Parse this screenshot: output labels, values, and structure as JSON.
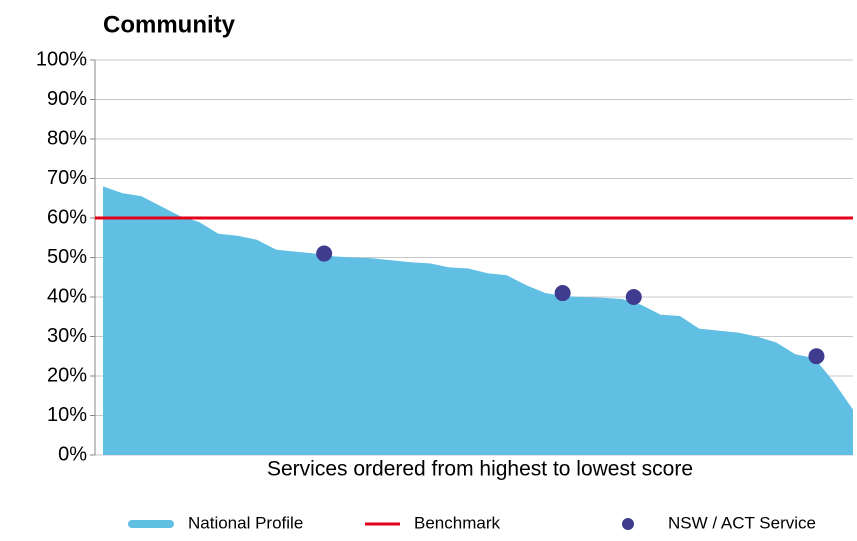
{
  "chart_data": {
    "type": "area",
    "title": "Community",
    "xlabel": "Services ordered from highest to lowest score",
    "ylim": [
      0,
      100
    ],
    "yticks": [
      {
        "value": 0,
        "label": "0%"
      },
      {
        "value": 10,
        "label": "10%"
      },
      {
        "value": 20,
        "label": "20%"
      },
      {
        "value": 30,
        "label": "30%"
      },
      {
        "value": 40,
        "label": "40%"
      },
      {
        "value": 50,
        "label": "50%"
      },
      {
        "value": 60,
        "label": "60%"
      },
      {
        "value": 70,
        "label": "70%"
      },
      {
        "value": 80,
        "label": "80%"
      },
      {
        "value": 90,
        "label": "90%"
      },
      {
        "value": 100,
        "label": "100%"
      }
    ],
    "grid": true,
    "series": [
      {
        "name": "National Profile",
        "color": "#62bfe4",
        "values": [
          68,
          66.3,
          65.5,
          63,
          60.5,
          59,
          56,
          55.5,
          54.5,
          52,
          51.5,
          51,
          50.3,
          50,
          49.8,
          49.3,
          48.8,
          48.5,
          47.5,
          47.2,
          46,
          45.5,
          43,
          41,
          40.2,
          40,
          39.8,
          39.5,
          38,
          35.5,
          35.2,
          32,
          31.5,
          31,
          30,
          28.5,
          25.5,
          24.5,
          18.5,
          11.5
        ]
      },
      {
        "name": "Benchmark",
        "color": "#e2001a",
        "values": [
          60
        ]
      },
      {
        "name": "NSW / ACT Service",
        "color": "#3f3b8f",
        "x": [
          11.5,
          23.9,
          27.6,
          37.1
        ],
        "values": [
          51,
          41,
          40,
          25
        ]
      }
    ]
  }
}
